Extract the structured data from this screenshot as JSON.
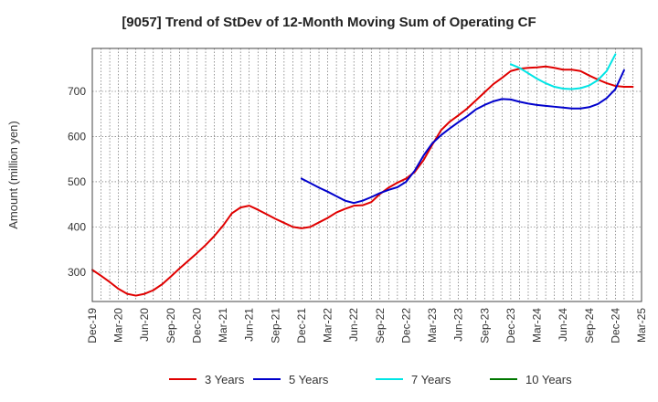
{
  "chart_data": {
    "type": "line",
    "title": "[9057]  Trend of StDev of 12-Month Moving Sum of Operating CF",
    "xlabel": "",
    "ylabel": "Amount (million yen)",
    "x_ticks": [
      "Dec-19",
      "Mar-20",
      "Jun-20",
      "Sep-20",
      "Dec-20",
      "Mar-21",
      "Jun-21",
      "Sep-21",
      "Dec-21",
      "Mar-22",
      "Jun-22",
      "Sep-22",
      "Dec-22",
      "Mar-23",
      "Jun-23",
      "Sep-23",
      "Dec-23",
      "Mar-24",
      "Jun-24",
      "Sep-24",
      "Dec-24",
      "Mar-25"
    ],
    "y_ticks": [
      300,
      400,
      500,
      600,
      700
    ],
    "ylim": [
      235,
      795
    ],
    "grid": true,
    "legend_position": "bottom",
    "series": [
      {
        "name": "3 Years",
        "color": "#e00000",
        "start_index": 0,
        "values": [
          305,
          292,
          278,
          263,
          252,
          248,
          252,
          260,
          273,
          290,
          308,
          325,
          342,
          360,
          380,
          403,
          430,
          443,
          447,
          438,
          428,
          418,
          409,
          400,
          397,
          400,
          410,
          420,
          432,
          440,
          447,
          448,
          455,
          473,
          487,
          498,
          507,
          522,
          548,
          582,
          614,
          633,
          647,
          662,
          680,
          698,
          716,
          730,
          745,
          750,
          752,
          753,
          755,
          752,
          748,
          748,
          745,
          735,
          726,
          718,
          712,
          710,
          710
        ]
      },
      {
        "name": "5 Years",
        "color": "#0000cc",
        "start_index": 24,
        "values": [
          507,
          497,
          487,
          478,
          468,
          458,
          453,
          458,
          466,
          475,
          482,
          488,
          500,
          525,
          558,
          585,
          603,
          618,
          632,
          645,
          660,
          670,
          678,
          683,
          682,
          677,
          673,
          670,
          668,
          666,
          664,
          662,
          662,
          665,
          672,
          685,
          705,
          747
        ]
      },
      {
        "name": "7 Years",
        "color": "#00e5e5",
        "start_index": 48,
        "values": [
          760,
          752,
          740,
          728,
          718,
          710,
          706,
          705,
          707,
          713,
          725,
          745,
          782
        ]
      },
      {
        "name": "10 Years",
        "color": "#007700",
        "start_index": 0,
        "values": []
      }
    ]
  }
}
